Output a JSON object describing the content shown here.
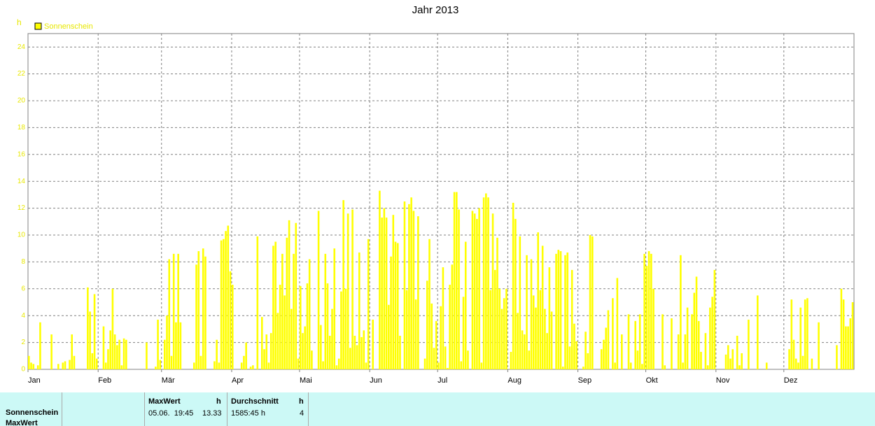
{
  "chart_data": {
    "type": "bar",
    "title": "Jahr 2013",
    "y_label": "h",
    "series": [
      {
        "name": "Sonnenschein",
        "color": "#ffff00",
        "values": [
          1.0,
          0.5,
          0.4,
          0,
          0.3,
          3.5,
          0,
          0,
          0,
          0,
          2.6,
          0,
          0,
          0.4,
          0,
          0.5,
          0.6,
          0,
          0.7,
          2.6,
          1.0,
          0,
          0,
          0,
          0,
          0,
          6.1,
          4.3,
          1.2,
          5.6,
          0.8,
          0,
          0,
          3.2,
          0.5,
          1.5,
          2.9,
          6.0,
          2.6,
          1.8,
          2.2,
          0.3,
          2.3,
          2.2,
          0,
          0,
          0,
          0,
          0,
          0,
          0,
          0,
          2.0,
          0,
          0,
          0,
          0.2,
          3.7,
          0.7,
          0,
          2.2,
          4.0,
          8.2,
          1.0,
          8.6,
          3.5,
          8.6,
          3.5,
          0,
          0,
          0,
          0,
          0,
          0.5,
          7.8,
          8.8,
          1.0,
          9.0,
          8.4,
          0,
          0,
          0,
          0.6,
          2.2,
          0.5,
          9.6,
          9.7,
          10.3,
          10.7,
          7.3,
          6.3,
          0,
          0,
          0,
          0.5,
          1.0,
          2.0,
          0,
          0.2,
          0.3,
          0,
          9.9,
          0,
          3.9,
          1.5,
          2.6,
          0.5,
          2.7,
          9.2,
          9.5,
          4.2,
          6.3,
          8.6,
          5.5,
          9.8,
          11.1,
          4.5,
          8.6,
          10.9,
          0.8,
          6.2,
          2.7,
          3.2,
          6.4,
          8.2,
          1.4,
          0,
          0,
          11.8,
          3.3,
          0.6,
          8.6,
          6.4,
          2.5,
          4.5,
          9.0,
          0.3,
          0.8,
          5.8,
          12.6,
          6.0,
          11.6,
          1.6,
          11.9,
          2.5,
          1.8,
          8.7,
          2.4,
          2.9,
          0.5,
          9.7,
          0,
          3.7,
          0,
          0,
          13.3,
          11.3,
          12.0,
          11.3,
          4.8,
          8.4,
          11.5,
          9.5,
          9.4,
          2.5,
          0,
          12.5,
          5.9,
          12.3,
          12.8,
          11.8,
          5.2,
          11.4,
          0,
          0,
          0.8,
          6.6,
          9.7,
          4.9,
          1.6,
          3.6,
          0.5,
          4.7,
          7.6,
          1.7,
          0.1,
          6.3,
          7.8,
          13.2,
          13.2,
          11.9,
          0.6,
          5.4,
          9.5,
          1.4,
          0,
          11.8,
          11.6,
          11.2,
          12.0,
          0.5,
          12.8,
          13.1,
          12.8,
          5.9,
          11.6,
          7.4,
          9.8,
          6.0,
          4.5,
          5.3,
          6.0,
          0,
          1.3,
          12.4,
          11.2,
          4.2,
          9.9,
          2.9,
          2.6,
          8.5,
          1.4,
          8.2,
          5.5,
          4.6,
          10.2,
          5.9,
          9.2,
          4.5,
          2.7,
          7.6,
          4.3,
          0,
          8.6,
          8.9,
          8.8,
          0.2,
          8.5,
          8.7,
          1.7,
          7.4,
          3.4,
          2.1,
          0,
          0,
          0.2,
          2.8,
          1.2,
          10.0,
          9.9,
          0,
          0,
          0,
          1.5,
          2.2,
          3.1,
          4.4,
          0,
          5.3,
          0.5,
          6.8,
          0,
          2.6,
          0,
          0,
          4.1,
          0.5,
          0,
          3.6,
          1.4,
          4.1,
          0.4,
          8.6,
          7.7,
          8.8,
          8.6,
          6.0,
          0,
          0,
          0,
          4.1,
          0.3,
          0,
          0,
          3.8,
          0,
          0,
          2.6,
          8.5,
          0.5,
          2.6,
          4.6,
          0,
          4.1,
          5.7,
          6.9,
          3.6,
          1.3,
          0,
          2.7,
          0.3,
          4.6,
          5.4,
          7.4,
          0,
          0,
          0,
          0,
          1.1,
          1.8,
          0.8,
          1.5,
          0,
          2.5,
          0.3,
          1.2,
          0,
          0,
          3.7,
          0,
          0,
          0,
          5.5,
          0,
          0,
          0,
          0.5,
          0,
          0,
          0,
          0,
          0,
          0,
          0,
          0,
          0,
          1.5,
          5.2,
          2.2,
          0.8,
          0.5,
          4.6,
          1.0,
          5.2,
          5.3,
          0,
          0.8,
          0,
          0,
          3.5,
          0,
          0,
          0,
          0,
          0,
          0,
          0,
          1.8,
          0,
          6.0,
          5.2,
          3.2,
          3.2,
          3.8,
          5.0
        ]
      }
    ],
    "xticks": [
      "Jan",
      "Feb",
      "Mär",
      "Apr",
      "Mai",
      "Jun",
      "Jul",
      "Aug",
      "Sep",
      "Okt",
      "Nov",
      "Dez"
    ],
    "ylim": [
      0,
      25
    ],
    "yticks": [
      0,
      2,
      4,
      6,
      8,
      10,
      12,
      14,
      16,
      18,
      20,
      22,
      24
    ],
    "grid": true
  },
  "table": {
    "row_labels": [
      "Sonnenschein",
      "MaxWert"
    ],
    "max": {
      "header": "MaxWert",
      "unit": "h",
      "date": "05.06.  19:45",
      "value": 13.33
    },
    "avg": {
      "header": "Durchschnitt",
      "unit": "h",
      "total": "1585:45 h",
      "value": 4
    }
  }
}
